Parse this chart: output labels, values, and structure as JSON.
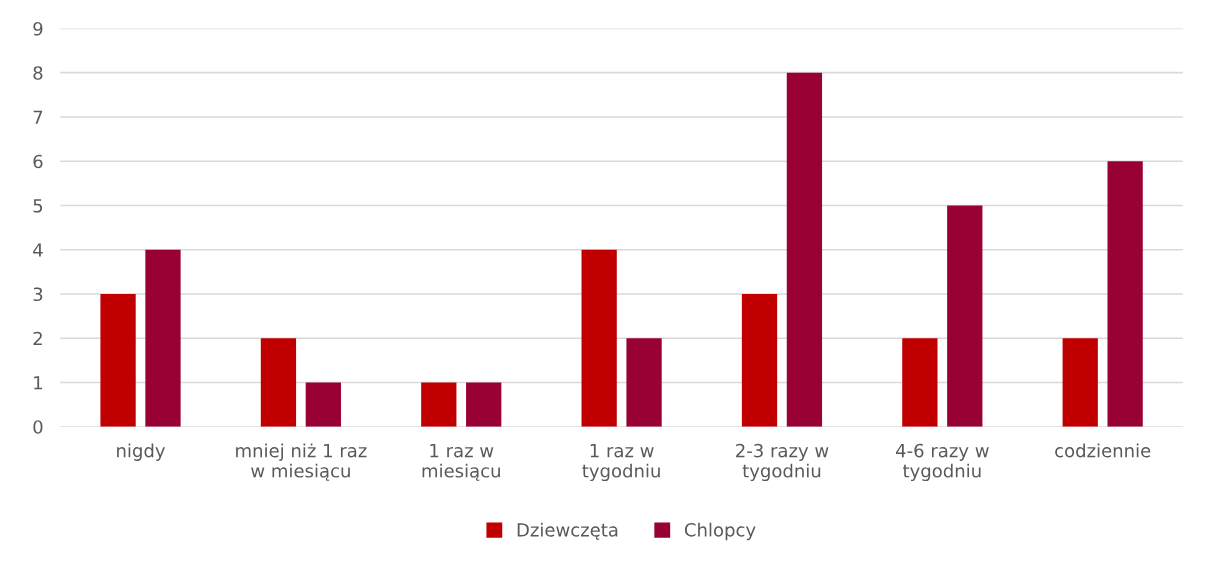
{
  "chart_data": {
    "type": "bar",
    "categories": [
      "nigdy",
      "mniej niż 1 raz\nw miesiącu",
      "1 raz w\nmiesiącu",
      "1 raz w\ntygodniu",
      "2-3 razy w\ntygodniu",
      "4-6 razy w\ntygodniu",
      "codziennie"
    ],
    "series": [
      {
        "name": "Dziewczęta",
        "color": "#c00000",
        "values": [
          3,
          2,
          1,
          4,
          3,
          2,
          2
        ]
      },
      {
        "name": "Chlopcy",
        "color": "#990033",
        "values": [
          4,
          1,
          1,
          2,
          8,
          5,
          6
        ]
      }
    ],
    "ylim": [
      0,
      9
    ],
    "yticks": [
      0,
      1,
      2,
      3,
      4,
      5,
      6,
      7,
      8,
      9
    ],
    "grid": "y",
    "legend": "bottom"
  }
}
